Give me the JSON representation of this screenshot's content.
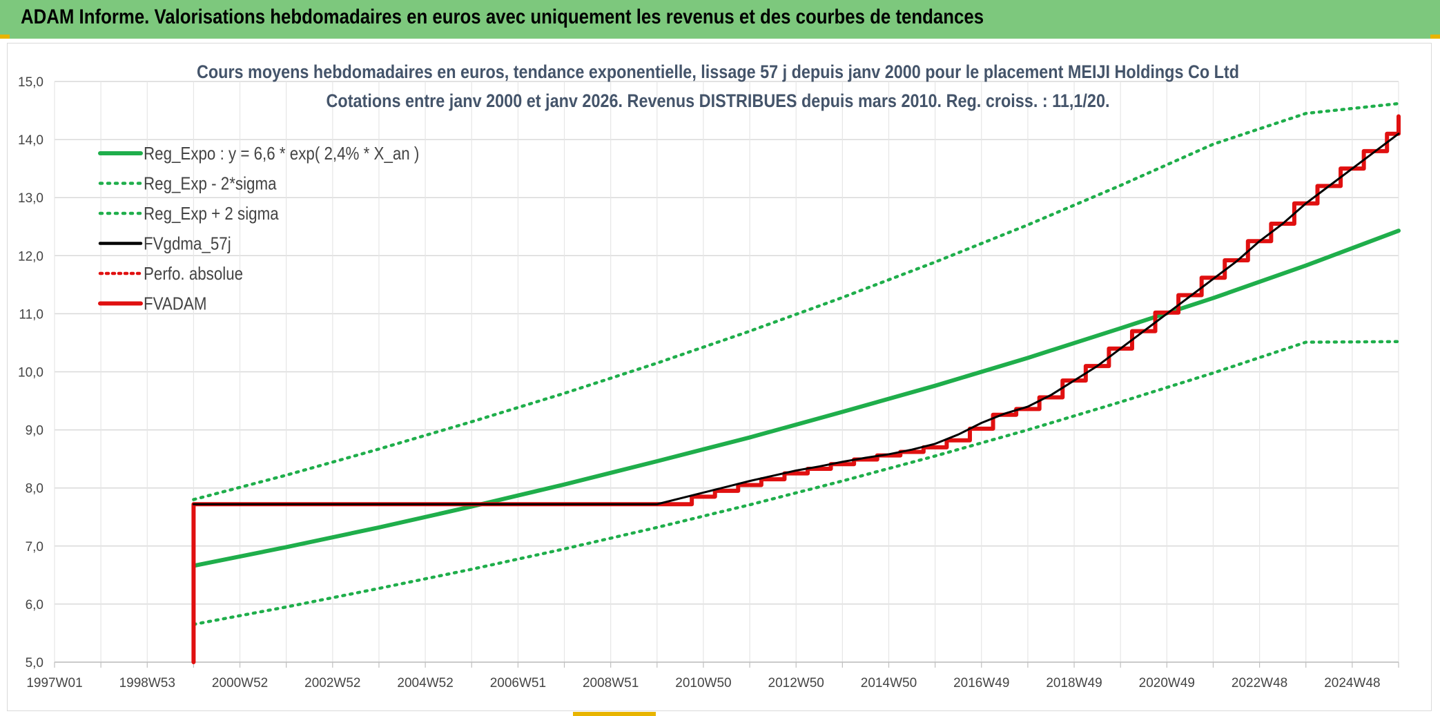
{
  "header": {
    "title": "ADAM Informe. Valorisations hebdomadaires en euros avec uniquement les revenus et des courbes de tendances"
  },
  "chart_data": {
    "type": "line",
    "title": "Cours moyens hebdomadaires en euros, tendance exponentielle, lissage 57 j depuis janv 2000 pour le placement MEIJI Holdings Co Ltd",
    "subtitle": "Cotations entre janv 2000 et janv 2026. Revenus DISTRIBUES depuis mars 2010. Reg. croiss. : 11,1/20.",
    "xlabel": "",
    "ylabel": "",
    "ylim": [
      5,
      15
    ],
    "xlim": [
      1997.0,
      2026.0
    ],
    "y_ticks": [
      "5,0",
      "6,0",
      "7,0",
      "8,0",
      "9,0",
      "10,0",
      "11,0",
      "12,0",
      "13,0",
      "14,0",
      "15,0"
    ],
    "x_ticks": [
      {
        "label": "1997W01",
        "x": 1997.0
      },
      {
        "label": "1998W53",
        "x": 1999.0
      },
      {
        "label": "2000W52",
        "x": 2001.0
      },
      {
        "label": "2002W52",
        "x": 2003.0
      },
      {
        "label": "2004W52",
        "x": 2005.0
      },
      {
        "label": "2006W51",
        "x": 2007.0
      },
      {
        "label": "2008W51",
        "x": 2009.0
      },
      {
        "label": "2010W50",
        "x": 2011.0
      },
      {
        "label": "2012W50",
        "x": 2013.0
      },
      {
        "label": "2014W50",
        "x": 2015.0
      },
      {
        "label": "2016W49",
        "x": 2017.0
      },
      {
        "label": "2018W49",
        "x": 2019.0
      },
      {
        "label": "2020W49",
        "x": 2021.0
      },
      {
        "label": "2022W48",
        "x": 2023.0
      },
      {
        "label": "2024W48",
        "x": 2025.0
      }
    ],
    "grid": true,
    "legend_position": "top-left",
    "colors": {
      "reg_expo": "#1fae4b",
      "reg_bands": "#1fae4b",
      "fvgdma": "#000000",
      "perfo": "#e01010",
      "fvadam": "#e01010"
    },
    "series": [
      {
        "name": "Reg_Expo : y = 6,6 * exp( 2,4% *  X_an )",
        "style": "solid-thick",
        "x": [
          2000.0,
          2002.0,
          2004.0,
          2006.0,
          2008.0,
          2010.0,
          2012.0,
          2014.0,
          2016.0,
          2018.0,
          2020.0,
          2022.0,
          2024.0,
          2026.0
        ],
        "values": [
          6.66,
          6.98,
          7.32,
          7.68,
          8.06,
          8.46,
          8.87,
          9.31,
          9.76,
          10.24,
          10.75,
          11.27,
          11.83,
          12.43
        ]
      },
      {
        "name": "Reg_Exp - 2*sigma",
        "style": "dotted",
        "x": [
          2000.0,
          2002.0,
          2004.0,
          2006.0,
          2008.0,
          2010.0,
          2012.0,
          2014.0,
          2016.0,
          2018.0,
          2020.0,
          2022.0,
          2024.0,
          2026.0
        ],
        "values": [
          5.65,
          5.95,
          6.27,
          6.6,
          6.95,
          7.32,
          7.71,
          8.12,
          8.55,
          9.0,
          9.48,
          9.98,
          10.51,
          10.52
        ]
      },
      {
        "name": "Reg_Exp + 2 sigma",
        "style": "dotted",
        "x": [
          2000.0,
          2002.0,
          2004.0,
          2006.0,
          2008.0,
          2010.0,
          2012.0,
          2014.0,
          2016.0,
          2018.0,
          2020.0,
          2022.0,
          2024.0,
          2026.0
        ],
        "values": [
          7.8,
          8.22,
          8.67,
          9.14,
          9.63,
          10.15,
          10.7,
          11.28,
          11.89,
          12.53,
          13.21,
          13.92,
          14.45,
          14.62
        ]
      },
      {
        "name": "FVgdma_57j",
        "style": "solid-thin",
        "x": [
          2000.0,
          2010.0,
          2010.5,
          2011.0,
          2011.5,
          2012.0,
          2012.5,
          2013.0,
          2013.5,
          2014.0,
          2014.5,
          2015.0,
          2015.5,
          2016.0,
          2016.5,
          2017.0,
          2017.5,
          2018.0,
          2018.5,
          2019.0,
          2019.5,
          2020.0,
          2020.5,
          2021.0,
          2021.5,
          2022.0,
          2022.5,
          2023.0,
          2023.5,
          2024.0,
          2024.5,
          2025.0,
          2025.5,
          2026.0
        ],
        "values": [
          7.72,
          7.72,
          7.82,
          7.92,
          8.02,
          8.12,
          8.21,
          8.3,
          8.37,
          8.45,
          8.52,
          8.58,
          8.66,
          8.76,
          8.92,
          9.12,
          9.28,
          9.4,
          9.6,
          9.85,
          10.1,
          10.4,
          10.7,
          11.0,
          11.3,
          11.6,
          11.9,
          12.25,
          12.55,
          12.9,
          13.2,
          13.5,
          13.8,
          14.1
        ]
      },
      {
        "name": "Perfo. absolue",
        "style": "dotted",
        "x": [],
        "values": []
      },
      {
        "name": "FVADAM",
        "style": "step-thick",
        "x": [
          2000.0,
          2000.0,
          2010.25,
          2010.75,
          2011.25,
          2011.75,
          2012.25,
          2012.75,
          2013.25,
          2013.75,
          2014.25,
          2014.75,
          2015.25,
          2015.75,
          2016.25,
          2016.75,
          2017.25,
          2017.75,
          2018.25,
          2018.75,
          2019.25,
          2019.75,
          2020.25,
          2020.75,
          2021.25,
          2021.75,
          2022.25,
          2022.75,
          2023.25,
          2023.75,
          2024.25,
          2024.75,
          2025.25,
          2025.75,
          2026.0
        ],
        "values": [
          5.0,
          7.72,
          7.72,
          7.85,
          7.95,
          8.05,
          8.15,
          8.25,
          8.33,
          8.41,
          8.49,
          8.56,
          8.62,
          8.7,
          8.82,
          9.02,
          9.26,
          9.36,
          9.56,
          9.85,
          10.1,
          10.4,
          10.7,
          11.02,
          11.32,
          11.62,
          11.92,
          12.25,
          12.55,
          12.9,
          13.2,
          13.5,
          13.8,
          14.1,
          14.4
        ]
      }
    ]
  }
}
